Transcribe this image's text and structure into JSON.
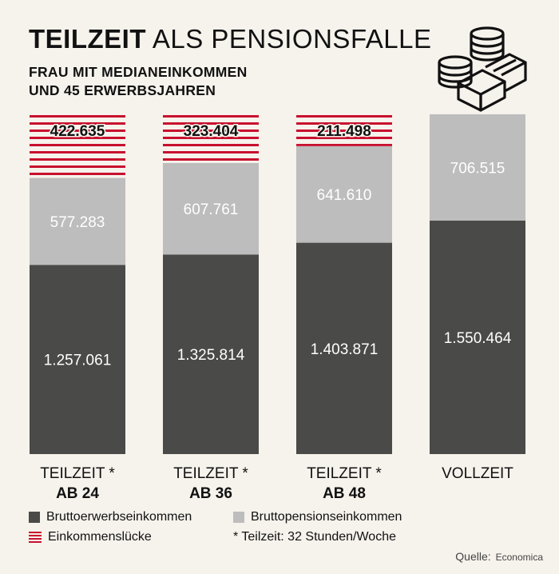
{
  "title_bold": "TEILZEIT",
  "title_rest": "ALS PENSIONSFALLE",
  "subtitle_line1": "FRAU MIT MEDIANEINKOMMEN",
  "subtitle_line2": "UND 45 ERWERBSJAHREN",
  "icon": "coins-stack-icon",
  "colors": {
    "erwerb": "#4a4a48",
    "pension": "#bdbdbd",
    "luecke": "#c8102e",
    "background": "#f6f2ec"
  },
  "chart_data": {
    "type": "bar",
    "stacked": true,
    "categories": [
      {
        "line1": "TEILZEIT *",
        "line2": "AB 24"
      },
      {
        "line1": "TEILZEIT *",
        "line2": "AB 36"
      },
      {
        "line1": "TEILZEIT *",
        "line2": "AB 48"
      },
      {
        "line1": "VOLLZEIT",
        "line2": ""
      }
    ],
    "series": [
      {
        "name": "Bruttoerwerbseinkommen",
        "values": [
          1257061,
          1325814,
          1403871,
          1550464
        ],
        "labels": [
          "1.257.061",
          "1.325.814",
          "1.403.871",
          "1.550.464"
        ]
      },
      {
        "name": "Bruttopensionseinkommen",
        "values": [
          577283,
          607761,
          641610,
          706515
        ],
        "labels": [
          "577.283",
          "607.761",
          "641.610",
          "706.515"
        ]
      },
      {
        "name": "Einkommenslücke",
        "values": [
          422635,
          323404,
          211498,
          0
        ],
        "labels": [
          "422.635",
          "323.404",
          "211.498",
          ""
        ]
      }
    ],
    "ylim": [
      0,
      2256979
    ],
    "grid": false,
    "legend": "bottom"
  },
  "legend": {
    "erwerb": "Bruttoerwerbseinkommen",
    "pension": "Bruttopensionseinkommen",
    "luecke": "Einkommenslücke",
    "note": "* Teilzeit: 32 Stunden/Woche"
  },
  "source": {
    "label": "Quelle:",
    "name": "Economica"
  }
}
